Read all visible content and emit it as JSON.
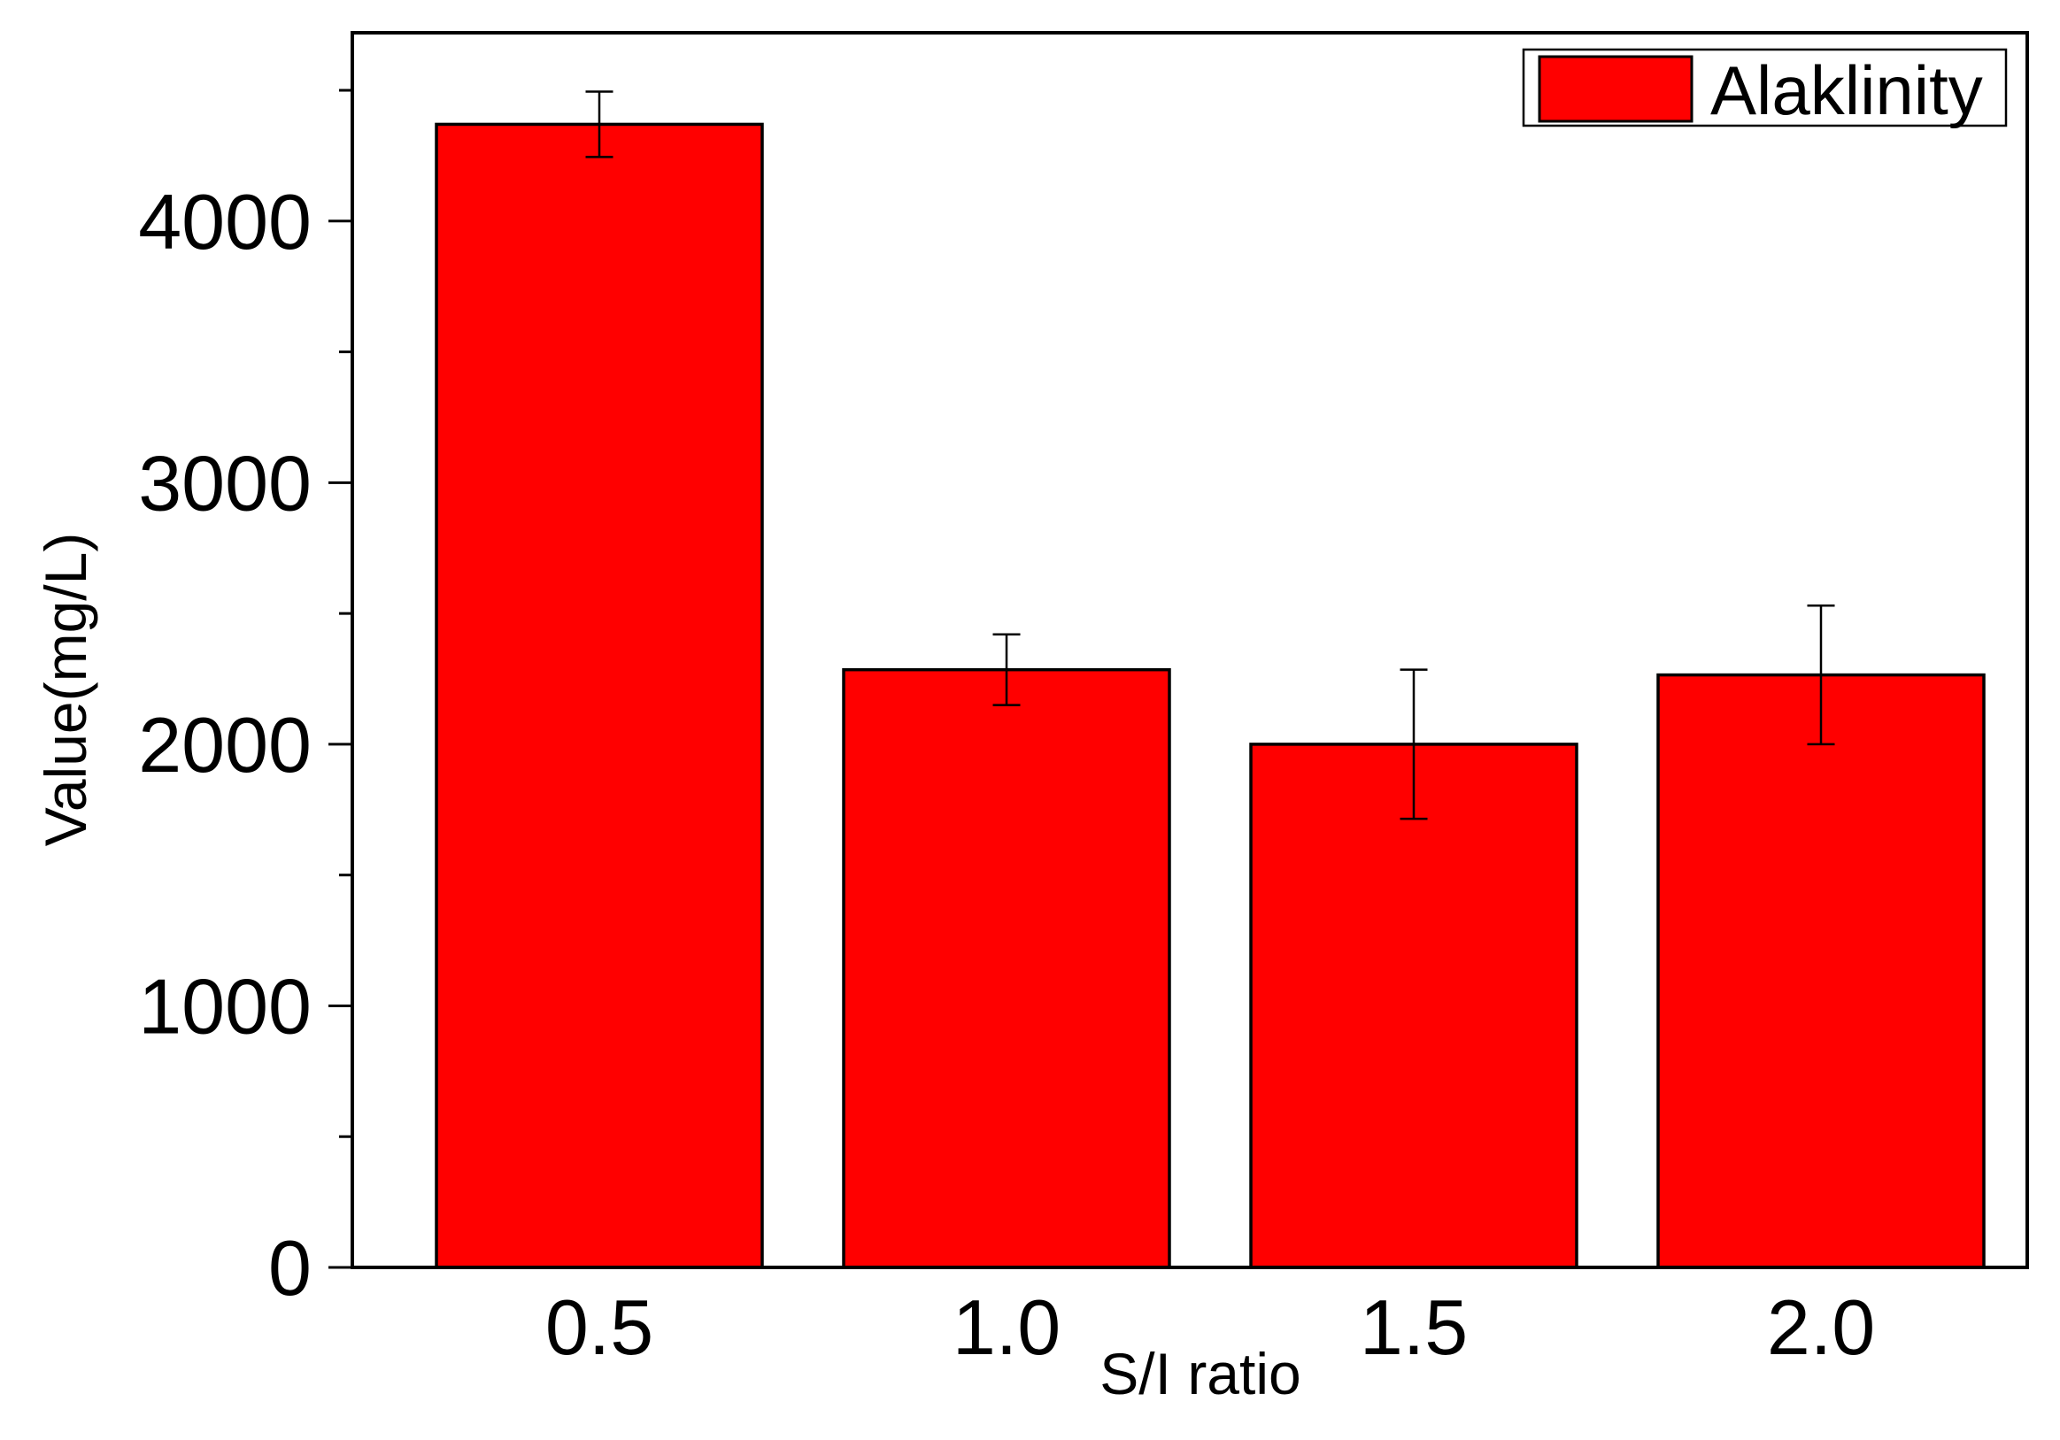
{
  "chart_data": {
    "type": "bar",
    "categories": [
      "0.5",
      "1.0",
      "1.5",
      "2.0"
    ],
    "series": [
      {
        "name": "Alaklinity",
        "values": [
          4370,
          2285,
          2000,
          2265
        ],
        "errors": [
          125,
          135,
          285,
          265
        ],
        "color": "#FF0000"
      }
    ],
    "xlabel": "S/I ratio",
    "ylabel": "Value(mg/L)",
    "ylim": [
      0,
      4720
    ],
    "yticks": [
      0,
      1000,
      2000,
      3000,
      4000
    ],
    "yticks_minor": [
      500,
      1500,
      2500,
      3500,
      4500
    ],
    "grid": false,
    "legend": {
      "position": "top-right"
    },
    "edge_color": "#000000"
  }
}
